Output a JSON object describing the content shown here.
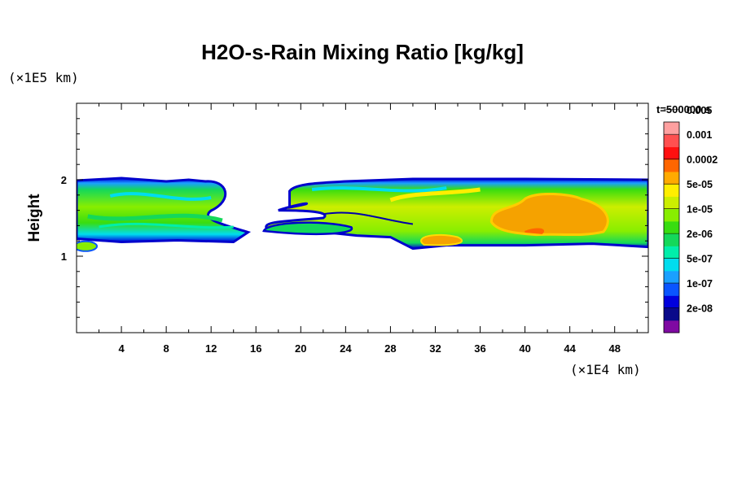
{
  "chart_data": {
    "type": "heatmap",
    "title": "H2O-s-Rain Mixing Ratio [kg/kg]",
    "ylabel": "Height",
    "y_unit": "(×1E5 km)",
    "x_unit": "(×1E4 km)",
    "time_label": "t=500000 s",
    "xlim": [
      0,
      51
    ],
    "ylim": [
      0,
      3
    ],
    "x_ticks": [
      4,
      8,
      12,
      16,
      20,
      24,
      28,
      32,
      36,
      40,
      44,
      48
    ],
    "y_ticks": [
      1,
      2
    ],
    "x_minor_step": 2,
    "y_minor_step": 0.2,
    "colorbar": {
      "colors": [
        "#7f0aa2",
        "#0a0a8a",
        "#0000dd",
        "#0a55ff",
        "#1aa0ff",
        "#00ddee",
        "#00eeaa",
        "#14d85a",
        "#38dd10",
        "#88ee00",
        "#ccee00",
        "#ffee00",
        "#ffaa00",
        "#ff6600",
        "#ff1010",
        "#ff5050",
        "#ffa0a0"
      ],
      "labels": [
        "2e-08",
        "1e-07",
        "5e-07",
        "2e-06",
        "1e-05",
        "5e-05",
        "0.0002",
        "0.001",
        "0.005"
      ],
      "label_every": 2
    },
    "clouds": [
      {
        "x": [
          0.0,
          15.3
        ],
        "bottom": 1.25,
        "top": 2.0,
        "core": "#9ee800"
      },
      {
        "x": [
          16.7,
          51.0
        ],
        "bottom": 1.1,
        "top": 2.0,
        "core": "#f5a200"
      }
    ]
  }
}
